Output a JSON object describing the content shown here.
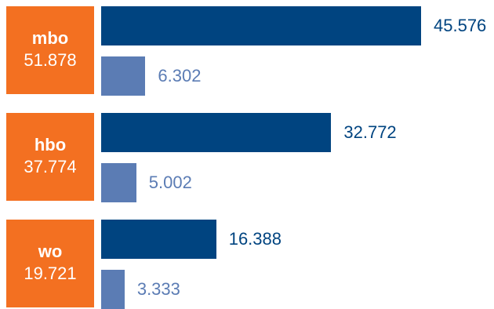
{
  "chart_data": {
    "type": "bar",
    "orientation": "horizontal",
    "groups": [
      {
        "name": "mbo",
        "total": "51.878",
        "bars": [
          {
            "value": 45.576,
            "label": "45.576"
          },
          {
            "value": 6.302,
            "label": "6.302"
          }
        ]
      },
      {
        "name": "hbo",
        "total": "37.774",
        "bars": [
          {
            "value": 32.772,
            "label": "32.772"
          },
          {
            "value": 5.002,
            "label": "5.002"
          }
        ]
      },
      {
        "name": "wo",
        "total": "19.721",
        "bars": [
          {
            "value": 16.388,
            "label": "16.388"
          },
          {
            "value": 3.333,
            "label": "3.333"
          }
        ]
      }
    ],
    "series_colors": [
      "#004480",
      "#5b7cb4"
    ],
    "label_colors": [
      "#004480",
      "#5b7cb4"
    ],
    "group_label_color": "#f37021",
    "xlim": [
      0,
      45.576
    ],
    "grid": false,
    "legend": "none"
  }
}
